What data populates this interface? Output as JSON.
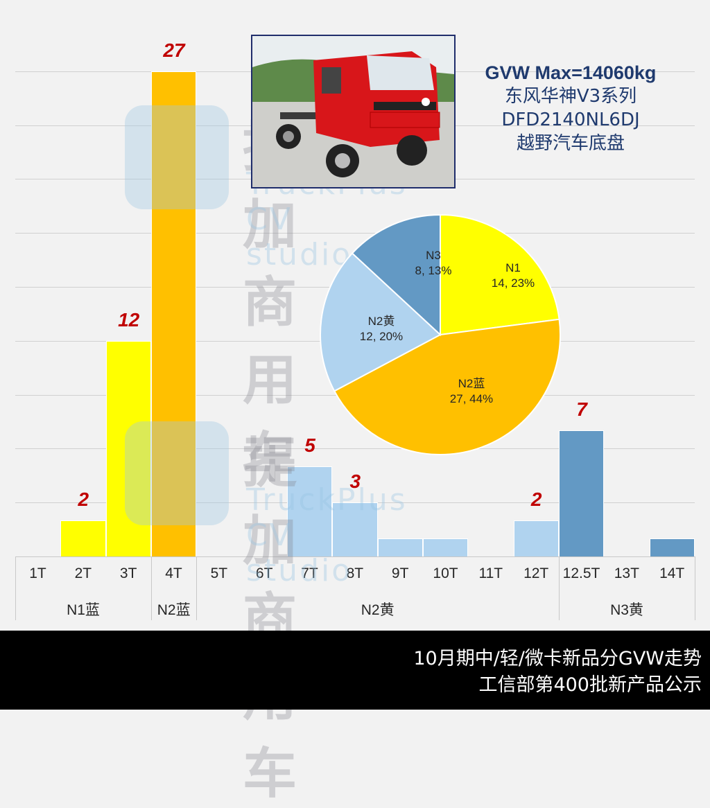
{
  "header": {
    "info_lines": [
      "GVW Max=14060kg",
      "东风华神V3系列",
      "DFD2140NL6DJ",
      "越野汽车底盘"
    ]
  },
  "watermark": {
    "cn": "提加商用车",
    "en": "TruckPlus CV studio"
  },
  "footer": {
    "line1": "10月期中/轻/微卡新品分GVW走势",
    "line2": "工信部第400批新产品公示"
  },
  "colors": {
    "N1": "#ffff00",
    "N2蓝": "#ffc000",
    "N2黄": "#b0d3ef",
    "N3": "#6399c4",
    "label": "#c00000"
  },
  "chart_data": [
    {
      "type": "bar",
      "title": "",
      "xlabel": "",
      "ylabel": "",
      "categories": [
        "1T",
        "2T",
        "3T",
        "4T",
        "5T",
        "6T",
        "7T",
        "8T",
        "9T",
        "10T",
        "11T",
        "12T",
        "12.5T",
        "13T",
        "14T"
      ],
      "groups": [
        {
          "name": "N1蓝",
          "categories": [
            "1T",
            "2T",
            "3T"
          ]
        },
        {
          "name": "N2蓝",
          "categories": [
            "4T"
          ]
        },
        {
          "name": "N2黄",
          "categories": [
            "5T",
            "6T",
            "7T",
            "8T",
            "9T",
            "10T",
            "11T",
            "12T"
          ]
        },
        {
          "name": "N3黄",
          "categories": [
            "12.5T",
            "13T",
            "14T"
          ]
        }
      ],
      "values": [
        0,
        2,
        12,
        27,
        0,
        0,
        5,
        3,
        1,
        1,
        0,
        2,
        7,
        0,
        1
      ],
      "data_labels": [
        "",
        "2",
        "12",
        "27",
        "",
        "",
        "5",
        "3",
        "",
        "",
        "",
        "2",
        "7",
        "",
        ""
      ],
      "ylim": [
        0,
        27
      ],
      "grid": true,
      "gridline_step": 3
    },
    {
      "type": "pie",
      "labels": [
        "N1",
        "N2蓝",
        "N2黄",
        "N3"
      ],
      "values": [
        14,
        27,
        12,
        8
      ],
      "percents": [
        23,
        44,
        20,
        13
      ],
      "display": [
        "14, 23%",
        "27, 44%",
        "12, 20%",
        "8, 13%"
      ]
    }
  ]
}
